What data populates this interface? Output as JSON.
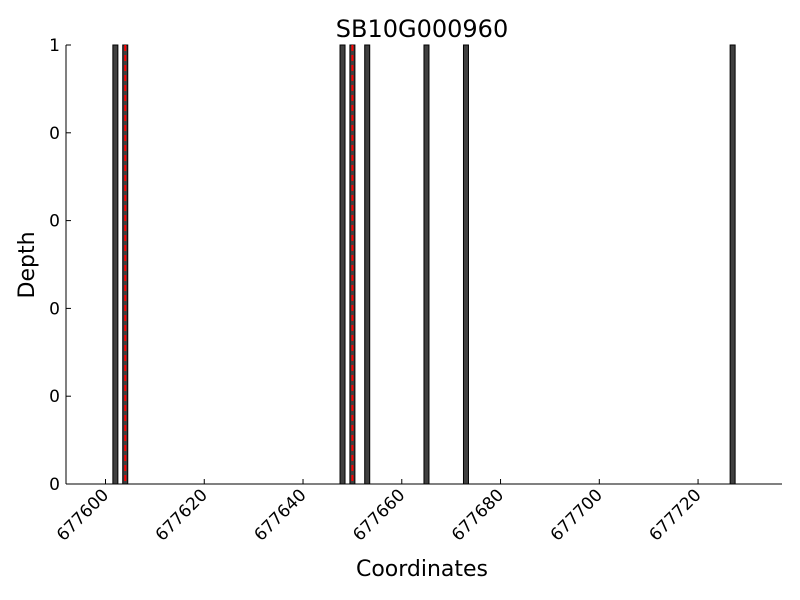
{
  "chart_data": {
    "type": "bar",
    "title": "SB10G000960",
    "xlabel": "Coordinates",
    "ylabel": "Depth",
    "xlim": [
      677592,
      677737
    ],
    "ylim": [
      0,
      1
    ],
    "x_ticks": [
      677600,
      677620,
      677640,
      677660,
      677680,
      677700,
      677720
    ],
    "x_tick_labels": [
      "677600",
      "677620",
      "677640",
      "677660",
      "677680",
      "677700",
      "677720"
    ],
    "y_ticks": [
      0,
      0.2,
      0.4,
      0.6,
      0.8,
      1.0
    ],
    "y_tick_labels": [
      "0",
      "0",
      "0",
      "0",
      "0",
      "1"
    ],
    "bars": [
      {
        "x": 677602,
        "depth": 1
      },
      {
        "x": 677604,
        "depth": 1
      },
      {
        "x": 677648,
        "depth": 1
      },
      {
        "x": 677650,
        "depth": 1
      },
      {
        "x": 677653,
        "depth": 1
      },
      {
        "x": 677665,
        "depth": 1
      },
      {
        "x": 677673,
        "depth": 1
      },
      {
        "x": 677727,
        "depth": 1
      }
    ],
    "highlight_x": [
      677604,
      677650
    ],
    "grid": false,
    "colors": {
      "bar_fill": "#404040",
      "bar_edge": "#000000",
      "highlight": "#ff0000",
      "axis": "#000000"
    }
  }
}
